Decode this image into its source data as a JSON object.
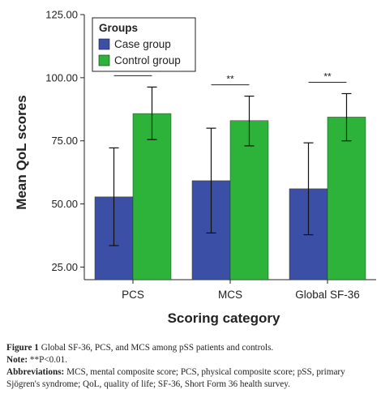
{
  "chart_data": {
    "type": "bar",
    "categories": [
      "PCS",
      "MCS",
      "Global SF-36"
    ],
    "series": [
      {
        "name": "Case group",
        "color": "#3b4fa7",
        "values": [
          52.8,
          59.2,
          56.0
        ],
        "error_low": [
          33.5,
          38.5,
          37.8
        ],
        "error_high": [
          72.2,
          80.0,
          74.2
        ]
      },
      {
        "name": "Control group",
        "color": "#2db23a",
        "values": [
          85.8,
          83.0,
          84.4
        ],
        "error_low": [
          75.5,
          73.0,
          75.0
        ],
        "error_high": [
          96.3,
          92.7,
          93.7
        ]
      }
    ],
    "significance": [
      "**",
      "**",
      "**"
    ],
    "xlabel": "Scoring category",
    "ylabel": "Mean QoL scores",
    "ylim": [
      20,
      125
    ],
    "yticks": [
      "25.00",
      "50.00",
      "75.00",
      "100.00",
      "125.00"
    ],
    "ytick_values": [
      25,
      50,
      75,
      100,
      125
    ],
    "legend": {
      "title": "Groups",
      "placement": "top-left"
    },
    "grid": false
  },
  "caption": {
    "figure_label": "Figure 1",
    "figure_text": "Global SF-36, PCS, and MCS among pSS patients and controls.",
    "note_label": "Note:",
    "note_text": "**P<0.01.",
    "abbr_label": "Abbreviations:",
    "abbr_text": "MCS, mental composite score; PCS, physical composite score; pSS, primary Sjögren's syndrome; QoL, quality of life; SF-36, Short Form 36 health survey."
  }
}
